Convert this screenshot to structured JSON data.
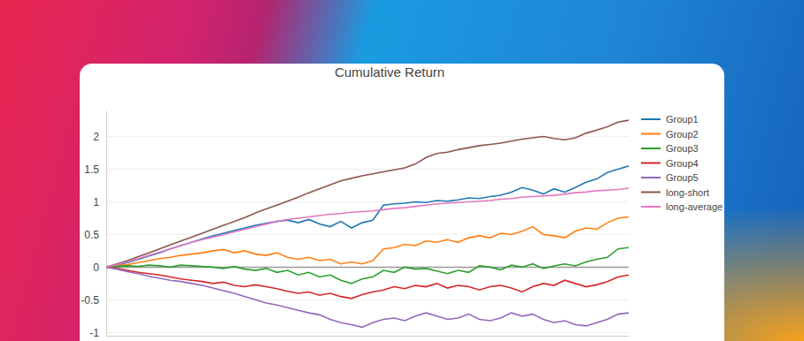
{
  "chart_data": {
    "type": "line",
    "title": "Cumulative Return",
    "x": [
      0,
      1,
      2,
      3,
      4,
      5,
      6,
      7,
      8,
      9,
      10,
      11,
      12,
      13,
      14,
      15,
      16,
      17,
      18,
      19,
      20,
      21,
      22,
      23,
      24,
      25,
      26,
      27,
      28,
      29,
      30,
      31,
      32,
      33,
      34,
      35,
      36,
      37,
      38,
      39,
      40,
      41,
      42,
      43,
      44,
      45,
      46,
      47,
      48,
      49
    ],
    "xlim": [
      0,
      49
    ],
    "ylim": [
      -1.05,
      2.4
    ],
    "yticks": [
      -1,
      -0.5,
      0,
      0.5,
      1,
      1.5,
      2
    ],
    "grid": true,
    "tick_labels": "y",
    "series": [
      {
        "name": "Group1",
        "color": "#1f77b4",
        "values": [
          0,
          0.03,
          0.07,
          0.12,
          0.17,
          0.22,
          0.28,
          0.33,
          0.38,
          0.43,
          0.48,
          0.52,
          0.56,
          0.6,
          0.64,
          0.67,
          0.7,
          0.72,
          0.68,
          0.73,
          0.66,
          0.62,
          0.7,
          0.6,
          0.68,
          0.72,
          0.95,
          0.97,
          0.98,
          1.0,
          0.99,
          1.02,
          1.01,
          1.03,
          1.06,
          1.05,
          1.08,
          1.1,
          1.15,
          1.22,
          1.18,
          1.12,
          1.2,
          1.15,
          1.22,
          1.3,
          1.35,
          1.45,
          1.5,
          1.55
        ]
      },
      {
        "name": "Group2",
        "color": "#ff7f0e",
        "values": [
          0,
          0.02,
          0.04,
          0.07,
          0.1,
          0.13,
          0.15,
          0.18,
          0.2,
          0.22,
          0.25,
          0.27,
          0.22,
          0.25,
          0.2,
          0.18,
          0.22,
          0.15,
          0.12,
          0.15,
          0.1,
          0.12,
          0.05,
          0.08,
          0.05,
          0.1,
          0.28,
          0.3,
          0.35,
          0.33,
          0.4,
          0.38,
          0.42,
          0.38,
          0.45,
          0.48,
          0.45,
          0.52,
          0.5,
          0.55,
          0.62,
          0.5,
          0.48,
          0.45,
          0.55,
          0.6,
          0.58,
          0.68,
          0.75,
          0.77
        ]
      },
      {
        "name": "Group3",
        "color": "#2ca02c",
        "values": [
          0,
          0.01,
          0.02,
          0.01,
          0.03,
          0.02,
          0.0,
          0.03,
          0.02,
          0.01,
          0.0,
          -0.02,
          0.01,
          -0.03,
          -0.05,
          -0.02,
          -0.08,
          -0.05,
          -0.12,
          -0.08,
          -0.15,
          -0.12,
          -0.2,
          -0.25,
          -0.18,
          -0.15,
          -0.05,
          -0.08,
          0.0,
          -0.03,
          -0.02,
          -0.06,
          -0.1,
          -0.05,
          -0.08,
          0.02,
          0.0,
          -0.04,
          0.03,
          0.0,
          0.05,
          -0.02,
          0.02,
          0.05,
          0.02,
          0.08,
          0.12,
          0.15,
          0.28,
          0.3
        ]
      },
      {
        "name": "Group4",
        "color": "#d62728",
        "values": [
          0,
          -0.02,
          -0.05,
          -0.08,
          -0.1,
          -0.12,
          -0.15,
          -0.18,
          -0.2,
          -0.22,
          -0.25,
          -0.23,
          -0.28,
          -0.3,
          -0.27,
          -0.3,
          -0.33,
          -0.37,
          -0.4,
          -0.38,
          -0.43,
          -0.4,
          -0.45,
          -0.48,
          -0.42,
          -0.38,
          -0.35,
          -0.3,
          -0.33,
          -0.28,
          -0.3,
          -0.25,
          -0.32,
          -0.28,
          -0.3,
          -0.35,
          -0.3,
          -0.28,
          -0.32,
          -0.38,
          -0.3,
          -0.25,
          -0.28,
          -0.2,
          -0.25,
          -0.3,
          -0.27,
          -0.22,
          -0.15,
          -0.12
        ]
      },
      {
        "name": "Group5",
        "color": "#9467bd",
        "values": [
          0,
          -0.03,
          -0.07,
          -0.1,
          -0.14,
          -0.17,
          -0.2,
          -0.22,
          -0.25,
          -0.28,
          -0.32,
          -0.36,
          -0.4,
          -0.45,
          -0.5,
          -0.55,
          -0.58,
          -0.62,
          -0.66,
          -0.7,
          -0.73,
          -0.8,
          -0.85,
          -0.88,
          -0.92,
          -0.85,
          -0.8,
          -0.78,
          -0.82,
          -0.75,
          -0.7,
          -0.75,
          -0.8,
          -0.78,
          -0.72,
          -0.8,
          -0.82,
          -0.78,
          -0.7,
          -0.75,
          -0.72,
          -0.8,
          -0.85,
          -0.82,
          -0.88,
          -0.9,
          -0.85,
          -0.8,
          -0.72,
          -0.7
        ]
      },
      {
        "name": "long-short",
        "color": "#8c564b",
        "values": [
          0,
          0.05,
          0.1,
          0.16,
          0.22,
          0.28,
          0.34,
          0.4,
          0.46,
          0.52,
          0.58,
          0.64,
          0.7,
          0.76,
          0.83,
          0.89,
          0.95,
          1.01,
          1.07,
          1.14,
          1.2,
          1.26,
          1.32,
          1.36,
          1.4,
          1.43,
          1.46,
          1.49,
          1.52,
          1.58,
          1.68,
          1.74,
          1.76,
          1.8,
          1.83,
          1.86,
          1.88,
          1.9,
          1.93,
          1.96,
          1.98,
          2.0,
          1.97,
          1.95,
          1.98,
          2.05,
          2.1,
          2.15,
          2.22,
          2.25
        ]
      },
      {
        "name": "long-average",
        "color": "#e377c2",
        "values": [
          0,
          0.04,
          0.08,
          0.13,
          0.18,
          0.23,
          0.28,
          0.33,
          0.38,
          0.42,
          0.46,
          0.5,
          0.54,
          0.58,
          0.62,
          0.66,
          0.7,
          0.73,
          0.75,
          0.77,
          0.79,
          0.81,
          0.82,
          0.84,
          0.85,
          0.86,
          0.88,
          0.9,
          0.91,
          0.93,
          0.95,
          0.97,
          0.98,
          0.99,
          1.0,
          1.01,
          1.02,
          1.04,
          1.05,
          1.07,
          1.08,
          1.09,
          1.1,
          1.12,
          1.14,
          1.15,
          1.17,
          1.18,
          1.19,
          1.21
        ]
      }
    ]
  }
}
